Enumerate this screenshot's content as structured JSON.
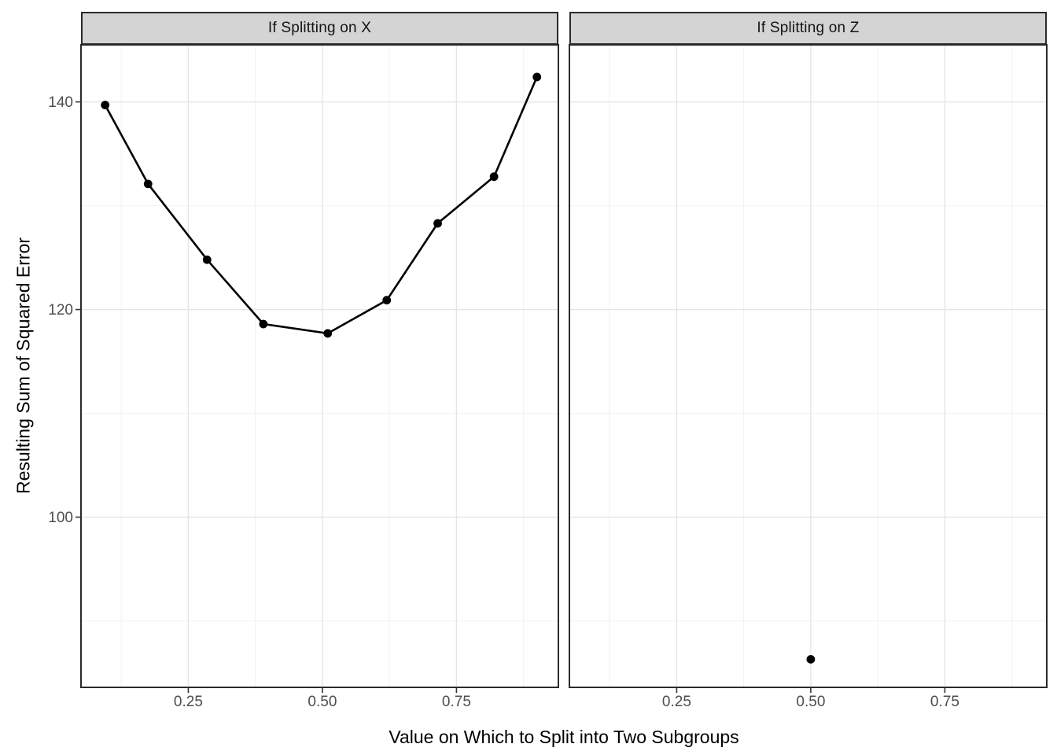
{
  "chart_data": {
    "type": "line",
    "title": "",
    "xlabel": "Value on Which to Split into Two Subgroups",
    "ylabel": "Resulting Sum of Squared Error",
    "legend": "none",
    "grid": true,
    "xlim": [
      0.05,
      0.94
    ],
    "ylim": [
      83.6,
      145.5
    ],
    "x_ticks": [
      0.25,
      0.5,
      0.75
    ],
    "y_ticks": [
      100,
      120,
      140
    ],
    "x_minor_ticks": [
      0.125,
      0.375,
      0.625,
      0.875
    ],
    "y_minor_ticks": [
      90,
      110,
      130
    ],
    "facets": [
      {
        "label": "If Splitting on X",
        "series": {
          "name": "sse-by-split-on-x",
          "draw_line": true,
          "points": [
            [
              0.095,
              139.7
            ],
            [
              0.175,
              132.1
            ],
            [
              0.285,
              124.8
            ],
            [
              0.39,
              118.6
            ],
            [
              0.51,
              117.7
            ],
            [
              0.62,
              120.9
            ],
            [
              0.715,
              128.3
            ],
            [
              0.82,
              132.8
            ],
            [
              0.9,
              142.4
            ]
          ]
        }
      },
      {
        "label": "If Splitting on Z",
        "series": {
          "name": "sse-by-split-on-z",
          "draw_line": false,
          "points": [
            [
              0.5,
              86.3
            ]
          ]
        }
      }
    ]
  },
  "colors": {
    "background": "#ffffff",
    "panel_background": "#ffffff",
    "panel_border": "#2a2a2a",
    "strip_fill": "#d4d4d4",
    "strip_border": "#2a2a2a",
    "strip_text": "#141414",
    "grid_major": "#e5e5e5",
    "grid_minor": "#f2f2f2",
    "tick_mark": "#333333",
    "tick_label": "#4d4d4d",
    "axis_title": "#000000",
    "point": "#000000",
    "line": "#000000"
  }
}
